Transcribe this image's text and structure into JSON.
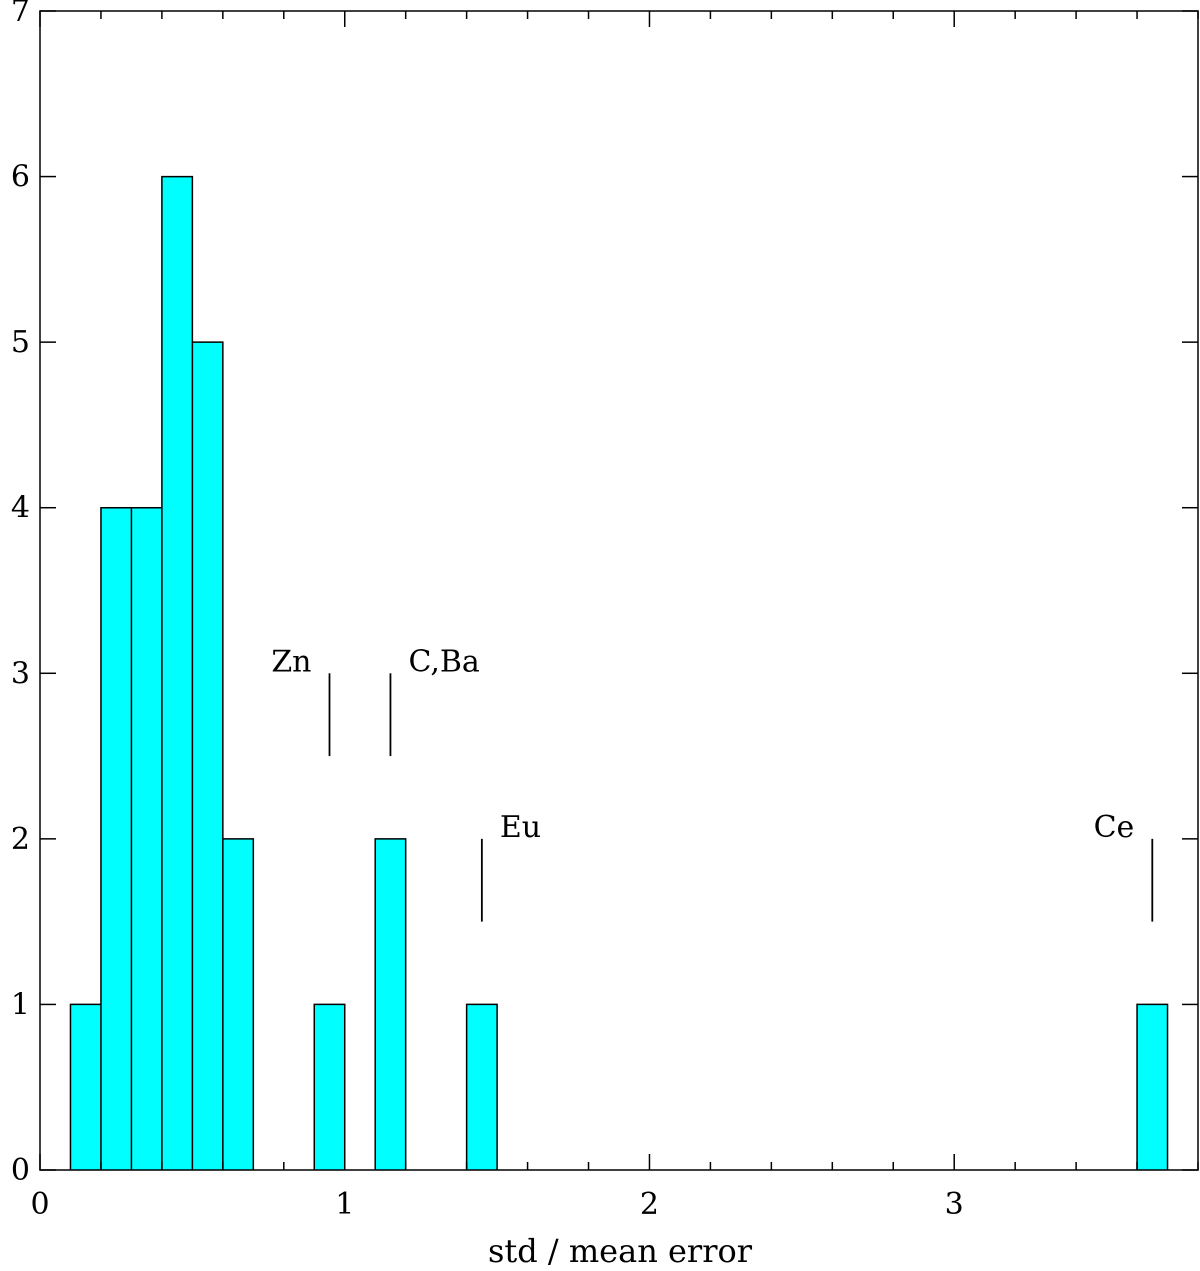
{
  "chart_data": {
    "type": "bar",
    "title": "",
    "xlabel": "std / mean error",
    "ylabel": "",
    "xlim": [
      0,
      3.8
    ],
    "ylim": [
      0,
      7
    ],
    "bin_width": 0.1,
    "x_ticks": [
      0,
      1,
      2,
      3
    ],
    "y_ticks": [
      0,
      1,
      2,
      3,
      4,
      5,
      6,
      7
    ],
    "x_minor_step": 0.2,
    "grid": false,
    "bar_color": "#00ffff",
    "bins": [
      {
        "x0": 0.1,
        "x1": 0.2,
        "count": 1
      },
      {
        "x0": 0.2,
        "x1": 0.3,
        "count": 4
      },
      {
        "x0": 0.3,
        "x1": 0.4,
        "count": 4
      },
      {
        "x0": 0.4,
        "x1": 0.5,
        "count": 6
      },
      {
        "x0": 0.5,
        "x1": 0.6,
        "count": 5
      },
      {
        "x0": 0.6,
        "x1": 0.7,
        "count": 2
      },
      {
        "x0": 0.9,
        "x1": 1.0,
        "count": 1
      },
      {
        "x0": 1.1,
        "x1": 1.2,
        "count": 2
      },
      {
        "x0": 1.4,
        "x1": 1.5,
        "count": 1
      },
      {
        "x0": 3.6,
        "x1": 3.7,
        "count": 1
      }
    ],
    "annotations": [
      {
        "label": "Zn",
        "x": 0.95,
        "y_from": 2.5,
        "y_to": 3.0,
        "side": "left"
      },
      {
        "label": "C,Ba",
        "x": 1.15,
        "y_from": 2.5,
        "y_to": 3.0,
        "side": "right"
      },
      {
        "label": "Eu",
        "x": 1.45,
        "y_from": 1.5,
        "y_to": 2.0,
        "side": "right"
      },
      {
        "label": "Ce",
        "x": 3.65,
        "y_from": 1.5,
        "y_to": 2.0,
        "side": "left"
      }
    ]
  }
}
